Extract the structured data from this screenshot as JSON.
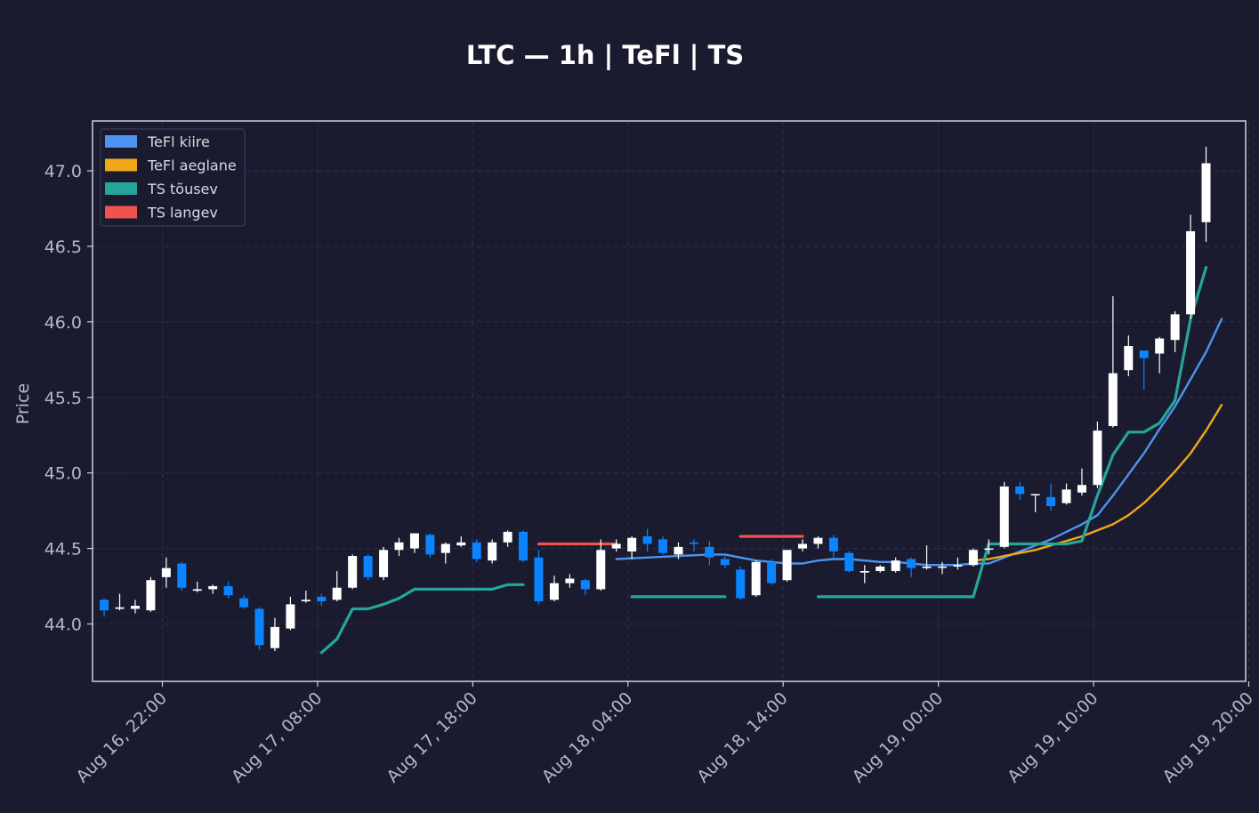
{
  "chart_data": {
    "type": "candlestick",
    "title": "LTC — 1h  |  TeFl  |  TS",
    "ylabel": "Price",
    "xlabel": "",
    "ylim": [
      43.62,
      47.33
    ],
    "yticks": [
      44.0,
      44.5,
      45.0,
      45.5,
      46.0,
      46.5,
      47.0
    ],
    "ytick_labels": [
      "44.0",
      "44.5",
      "45.0",
      "45.5",
      "46.0",
      "46.5",
      "47.0"
    ],
    "x_start": "Aug 16, 17:30",
    "x_end": "Aug 19, 23:50",
    "xtick_hours": [
      0,
      10,
      20,
      30,
      40,
      50,
      60,
      70
    ],
    "xtick_labels": [
      "Aug 16, 22:00",
      "Aug 17, 08:00",
      "Aug 17, 18:00",
      "Aug 18, 04:00",
      "Aug 18, 14:00",
      "Aug 19, 00:00",
      "Aug 19, 10:00",
      "Aug 19, 20:00"
    ],
    "x_units_note": "hours",
    "grid": true,
    "legend_position": "upper-left",
    "colors": {
      "background": "#1a1b2e",
      "up": "#ffffff",
      "down": "#0a84ff",
      "tefl_fast": "#4d94f0",
      "tefl_slow": "#f0a818",
      "ts_up": "#26a69a",
      "ts_down": "#ef5350",
      "grid": "#2e3050",
      "axis": "#d0d0d8",
      "tick_text": "#b8b8c4"
    },
    "legend": [
      {
        "label": "TeFl kiire",
        "color": "#4d94f0"
      },
      {
        "label": "TeFl aeglane",
        "color": "#f0a818"
      },
      {
        "label": "TS tõusev",
        "color": "#26a69a"
      },
      {
        "label": "TS langev",
        "color": "#ef5350"
      }
    ],
    "candles": [
      [
        0,
        44.16,
        44.09,
        44.17,
        44.05
      ],
      [
        1,
        44.1,
        44.11,
        44.2,
        44.09
      ],
      [
        2,
        44.1,
        44.12,
        44.16,
        44.07
      ],
      [
        3,
        44.09,
        44.29,
        44.31,
        44.08
      ],
      [
        4,
        44.31,
        44.37,
        44.44,
        44.24
      ],
      [
        5,
        44.4,
        44.24,
        44.41,
        44.22
      ],
      [
        6,
        44.22,
        44.23,
        44.28,
        44.21
      ],
      [
        7,
        44.23,
        44.25,
        44.26,
        44.2
      ],
      [
        8,
        44.25,
        44.19,
        44.28,
        44.17
      ],
      [
        9,
        44.17,
        44.11,
        44.19,
        44.1
      ],
      [
        10,
        44.1,
        43.86,
        44.11,
        43.83
      ],
      [
        11,
        43.84,
        43.98,
        44.04,
        43.82
      ],
      [
        12,
        43.97,
        44.13,
        44.18,
        43.96
      ],
      [
        13,
        44.15,
        44.16,
        44.22,
        44.14
      ],
      [
        14,
        44.18,
        44.15,
        44.2,
        44.12
      ],
      [
        15,
        44.16,
        44.24,
        44.35,
        44.15
      ],
      [
        16,
        44.24,
        44.45,
        44.46,
        44.23
      ],
      [
        17,
        44.45,
        44.31,
        44.46,
        44.29
      ],
      [
        18,
        44.31,
        44.49,
        44.51,
        44.29
      ],
      [
        19,
        44.49,
        44.54,
        44.57,
        44.45
      ],
      [
        20,
        44.5,
        44.6,
        44.6,
        44.47
      ],
      [
        21,
        44.59,
        44.46,
        44.6,
        44.44
      ],
      [
        22,
        44.47,
        44.53,
        44.54,
        44.4
      ],
      [
        23,
        44.52,
        44.54,
        44.58,
        44.51
      ],
      [
        24,
        44.54,
        44.43,
        44.56,
        44.41
      ],
      [
        25,
        44.42,
        44.54,
        44.56,
        44.4
      ],
      [
        26,
        44.54,
        44.61,
        44.62,
        44.51
      ],
      [
        27,
        44.61,
        44.42,
        44.62,
        44.41
      ],
      [
        28,
        44.44,
        44.15,
        44.49,
        44.13
      ],
      [
        29,
        44.16,
        44.27,
        44.32,
        44.15
      ],
      [
        30,
        44.27,
        44.3,
        44.33,
        44.24
      ],
      [
        31,
        44.29,
        44.23,
        44.3,
        44.19
      ],
      [
        32,
        44.23,
        44.49,
        44.56,
        44.22
      ],
      [
        33,
        44.5,
        44.53,
        44.56,
        44.48
      ],
      [
        34,
        44.48,
        44.57,
        44.58,
        44.43
      ],
      [
        35,
        44.58,
        44.53,
        44.63,
        44.48
      ],
      [
        36,
        44.56,
        44.47,
        44.58,
        44.46
      ],
      [
        37,
        44.46,
        44.51,
        44.54,
        44.43
      ],
      [
        38,
        44.54,
        44.53,
        44.56,
        44.48
      ],
      [
        39,
        44.51,
        44.44,
        44.55,
        44.39
      ],
      [
        40,
        44.43,
        44.39,
        44.45,
        44.37
      ],
      [
        41,
        44.36,
        44.17,
        44.38,
        44.16
      ],
      [
        42,
        44.19,
        44.41,
        44.42,
        44.18
      ],
      [
        43,
        44.41,
        44.27,
        44.43,
        44.26
      ],
      [
        44,
        44.29,
        44.49,
        44.49,
        44.28
      ],
      [
        45,
        44.5,
        44.53,
        44.56,
        44.48
      ],
      [
        46,
        44.53,
        44.57,
        44.58,
        44.5
      ],
      [
        47,
        44.57,
        44.48,
        44.59,
        44.44
      ],
      [
        48,
        44.47,
        44.35,
        44.48,
        44.34
      ],
      [
        49,
        44.34,
        44.35,
        44.39,
        44.27
      ],
      [
        50,
        44.35,
        44.38,
        44.39,
        44.34
      ],
      [
        51,
        44.35,
        44.42,
        44.44,
        44.34
      ],
      [
        52,
        44.43,
        44.37,
        44.44,
        44.31
      ],
      [
        53,
        44.37,
        44.38,
        44.52,
        44.36
      ],
      [
        54,
        44.38,
        44.38,
        44.41,
        44.33
      ],
      [
        55,
        44.38,
        44.39,
        44.44,
        44.36
      ],
      [
        56,
        44.39,
        44.49,
        44.5,
        44.38
      ],
      [
        57,
        44.5,
        44.5,
        44.56,
        44.46
      ],
      [
        58,
        44.51,
        44.91,
        44.94,
        44.5
      ],
      [
        59,
        44.91,
        44.86,
        44.94,
        44.82
      ],
      [
        60,
        44.86,
        44.86,
        44.86,
        44.74
      ],
      [
        61,
        44.84,
        44.78,
        44.93,
        44.75
      ],
      [
        62,
        44.8,
        44.89,
        44.93,
        44.79
      ],
      [
        63,
        44.87,
        44.92,
        45.03,
        44.85
      ],
      [
        64,
        44.92,
        45.28,
        45.34,
        44.9
      ],
      [
        65,
        45.31,
        45.66,
        46.17,
        45.3
      ],
      [
        66,
        45.68,
        45.84,
        45.91,
        45.64
      ],
      [
        67,
        45.81,
        45.76,
        45.81,
        45.55
      ],
      [
        68,
        45.79,
        45.89,
        45.9,
        45.66
      ],
      [
        69,
        45.88,
        46.05,
        46.07,
        45.8
      ],
      [
        70,
        46.05,
        46.6,
        46.71,
        46.02
      ],
      [
        71,
        46.66,
        47.05,
        47.16,
        46.53
      ]
    ],
    "series": [
      {
        "name": "TeFl kiire",
        "color": "#4d94f0",
        "segments": [
          [
            [
              33,
              44.43
            ],
            [
              35,
              44.44
            ],
            [
              37,
              44.45
            ],
            [
              39,
              44.46
            ],
            [
              40,
              44.46
            ],
            [
              41,
              44.44
            ],
            [
              42,
              44.42
            ],
            [
              43,
              44.41
            ],
            [
              44,
              44.4
            ],
            [
              45,
              44.4
            ],
            [
              46,
              44.42
            ],
            [
              47,
              44.43
            ],
            [
              48,
              44.43
            ],
            [
              49,
              44.42
            ],
            [
              50,
              44.41
            ],
            [
              51,
              44.41
            ],
            [
              52,
              44.4
            ],
            [
              53,
              44.39
            ],
            [
              54,
              44.39
            ],
            [
              55,
              44.39
            ],
            [
              56,
              44.4
            ],
            [
              57,
              44.4
            ],
            [
              58,
              44.44
            ],
            [
              59,
              44.48
            ],
            [
              60,
              44.52
            ],
            [
              61,
              44.56
            ],
            [
              62,
              44.61
            ],
            [
              63,
              44.66
            ],
            [
              64,
              44.72
            ],
            [
              65,
              44.85
            ],
            [
              66,
              44.99
            ],
            [
              67,
              45.13
            ],
            [
              68,
              45.29
            ],
            [
              69,
              45.44
            ],
            [
              70,
              45.62
            ],
            [
              71,
              45.8
            ],
            [
              72,
              46.02
            ]
          ]
        ]
      },
      {
        "name": "TeFl aeglane",
        "color": "#f0a818",
        "segments": [
          [
            [
              56,
              44.42
            ],
            [
              57,
              44.43
            ],
            [
              58,
              44.45
            ],
            [
              59,
              44.47
            ],
            [
              60,
              44.49
            ],
            [
              61,
              44.52
            ],
            [
              62,
              44.55
            ],
            [
              63,
              44.58
            ],
            [
              64,
              44.62
            ],
            [
              65,
              44.66
            ],
            [
              66,
              44.72
            ],
            [
              67,
              44.8
            ],
            [
              68,
              44.9
            ],
            [
              69,
              45.01
            ],
            [
              70,
              45.13
            ],
            [
              71,
              45.28
            ],
            [
              72,
              45.45
            ]
          ]
        ]
      },
      {
        "name": "TS tõusev",
        "color": "#26a69a",
        "segments": [
          [
            [
              14,
              43.81
            ],
            [
              15,
              43.9
            ],
            [
              16,
              44.1
            ],
            [
              17,
              44.1
            ],
            [
              18,
              44.13
            ],
            [
              19,
              44.17
            ],
            [
              20,
              44.23
            ],
            [
              21,
              44.23
            ],
            [
              22,
              44.23
            ],
            [
              23,
              44.23
            ],
            [
              24,
              44.23
            ],
            [
              25,
              44.23
            ],
            [
              26,
              44.26
            ],
            [
              27,
              44.26
            ]
          ],
          [
            [
              34,
              44.18
            ],
            [
              35,
              44.18
            ],
            [
              36,
              44.18
            ],
            [
              37,
              44.18
            ],
            [
              38,
              44.18
            ],
            [
              39,
              44.18
            ],
            [
              40,
              44.18
            ]
          ],
          [
            [
              46,
              44.18
            ],
            [
              47,
              44.18
            ],
            [
              48,
              44.18
            ],
            [
              49,
              44.18
            ],
            [
              50,
              44.18
            ],
            [
              51,
              44.18
            ],
            [
              52,
              44.18
            ],
            [
              53,
              44.18
            ],
            [
              54,
              44.18
            ],
            [
              55,
              44.18
            ],
            [
              56,
              44.18
            ],
            [
              57,
              44.53
            ],
            [
              58,
              44.53
            ],
            [
              59,
              44.53
            ],
            [
              60,
              44.53
            ],
            [
              61,
              44.53
            ],
            [
              62,
              44.53
            ],
            [
              63,
              44.55
            ],
            [
              64,
              44.85
            ],
            [
              65,
              45.12
            ],
            [
              66,
              45.27
            ],
            [
              67,
              45.27
            ],
            [
              68,
              45.33
            ],
            [
              69,
              45.48
            ],
            [
              70,
              46.02
            ],
            [
              71,
              46.36
            ]
          ]
        ]
      },
      {
        "name": "TS langev",
        "color": "#ef5350",
        "segments": [
          [
            [
              28,
              44.53
            ],
            [
              33,
              44.53
            ]
          ],
          [
            [
              41,
              44.58
            ],
            [
              45,
              44.58
            ]
          ]
        ]
      }
    ]
  }
}
